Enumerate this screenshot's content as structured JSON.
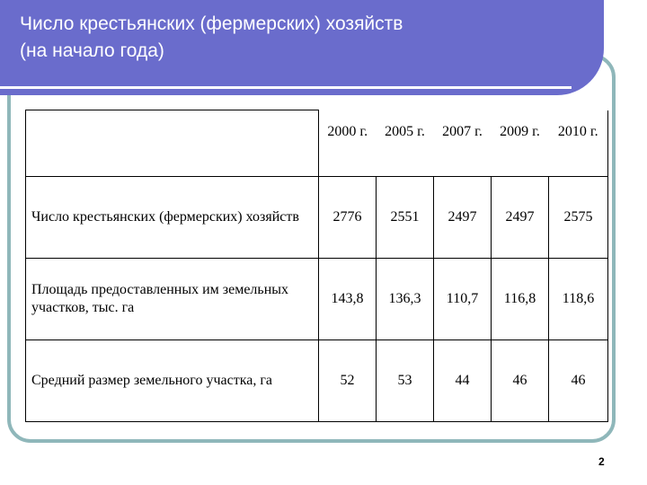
{
  "slide": {
    "title_line1": "Число крестьянских (фермерских) хозяйств",
    "title_line2": "(на начало года)",
    "page_number": "2"
  },
  "table": {
    "years": [
      "2000 г.",
      "2005 г.",
      "2007 г.",
      "2009 г.",
      "2010 г."
    ],
    "rows": [
      {
        "label": "Число крестьянских (фермерских) хозяйств",
        "values": [
          "2776",
          "2551",
          "2497",
          "2497",
          "2575"
        ]
      },
      {
        "label": "Площадь предоставленных им земельных участков, тыс. га",
        "values": [
          "143,8",
          "136,3",
          "110,7",
          "116,8",
          "118,6"
        ]
      },
      {
        "label": "Средний размер земельного участка, га",
        "values": [
          "52",
          "53",
          "44",
          "46",
          "46"
        ]
      }
    ]
  },
  "colors": {
    "header_bg": "#6a6ccc",
    "frame_border": "#8fb7ba"
  }
}
